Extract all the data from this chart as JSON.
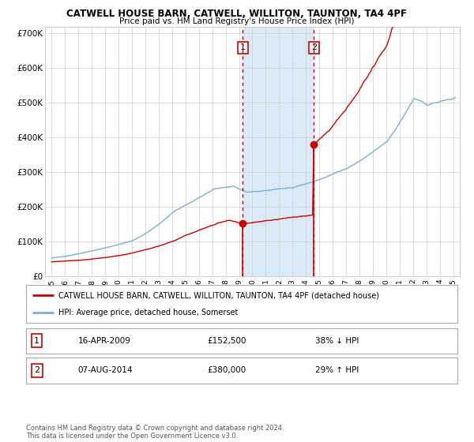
{
  "title": "CATWELL HOUSE BARN, CATWELL, WILLITON, TAUNTON, TA4 4PF",
  "subtitle": "Price paid vs. HM Land Registry's House Price Index (HPI)",
  "legend_line1": "CATWELL HOUSE BARN, CATWELL, WILLITON, TAUNTON, TA4 4PF (detached house)",
  "legend_line2": "HPI: Average price, detached house, Somerset",
  "annotation1_date": "16-APR-2009",
  "annotation1_price": "£152,500",
  "annotation1_hpi": "38% ↓ HPI",
  "annotation2_date": "07-AUG-2014",
  "annotation2_price": "£380,000",
  "annotation2_hpi": "29% ↑ HPI",
  "footer": "Contains HM Land Registry data © Crown copyright and database right 2024.\nThis data is licensed under the Open Government Licence v3.0.",
  "sale1_x": 2009.29,
  "sale1_y": 152500,
  "sale2_x": 2014.6,
  "sale2_y": 380000,
  "hpi_color": "#7aafd4",
  "price_color": "#cc0000",
  "background_color": "#ffffff",
  "grid_color": "#cccccc",
  "shade_color": "#daeaf6",
  "ylim": [
    0,
    720000
  ],
  "xlim": [
    1994.5,
    2025.5
  ],
  "hpi_base": 80000,
  "price_base": 42000
}
